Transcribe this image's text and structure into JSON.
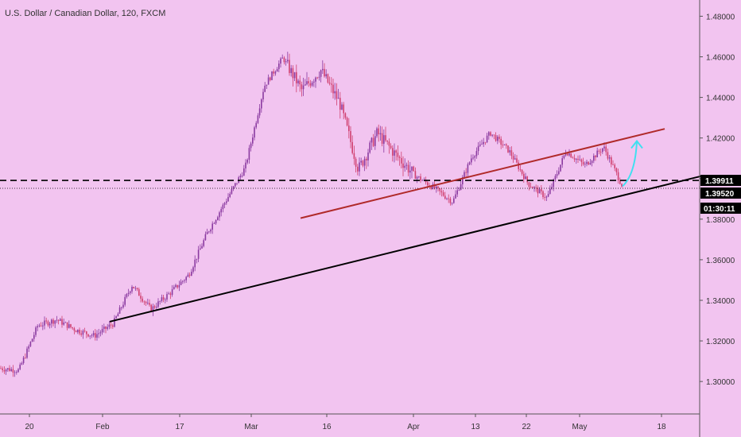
{
  "chart_data": {
    "type": "candlestick",
    "title": "U.S. Dollar / Canadian Dollar, 120, FXCM",
    "ylim": [
      1.284,
      1.488
    ],
    "y_ticks": [
      "1.30000",
      "1.32000",
      "1.34000",
      "1.36000",
      "1.38000",
      "1.40000",
      "1.42000",
      "1.44000",
      "1.46000",
      "1.48000"
    ],
    "x_ticks": [
      "20",
      "Feb",
      "17",
      "Mar",
      "16",
      "Apr",
      "13",
      "22",
      "May",
      "18"
    ],
    "price_path": [
      {
        "x": "start",
        "y": 1.3065
      },
      {
        "x": "20",
        "y": 1.3055
      },
      {
        "x": "Feb",
        "y": 1.3275
      },
      {
        "x": "Feb",
        "y": 1.3305
      },
      {
        "x": "17",
        "y": 1.3255
      },
      {
        "x": "17",
        "y": 1.3225
      },
      {
        "x": "17",
        "y": 1.3285
      },
      {
        "x": "Mar",
        "y": 1.3475
      },
      {
        "x": "Mar",
        "y": 1.3355
      },
      {
        "x": "Mar",
        "y": 1.3435
      },
      {
        "x": "Mar",
        "y": 1.3525
      },
      {
        "x": "Mar",
        "y": 1.3735
      },
      {
        "x": "16",
        "y": 1.3895
      },
      {
        "x": "16",
        "y": 1.4055
      },
      {
        "x": "16",
        "y": 1.4455
      },
      {
        "x": "16",
        "y": 1.4595
      },
      {
        "x": "16",
        "y": 1.4435
      },
      {
        "x": "16",
        "y": 1.4535
      },
      {
        "x": "16",
        "y": 1.4375
      },
      {
        "x": "Apr",
        "y": 1.4045
      },
      {
        "x": "Apr",
        "y": 1.4225
      },
      {
        "x": "Apr",
        "y": 1.4115
      },
      {
        "x": "Apr",
        "y": 1.4015
      },
      {
        "x": "13",
        "y": 1.3955
      },
      {
        "x": "13",
        "y": 1.3885
      },
      {
        "x": "13",
        "y": 1.4105
      },
      {
        "x": "22",
        "y": 1.4225
      },
      {
        "x": "22",
        "y": 1.4135
      },
      {
        "x": "22",
        "y": 1.3975
      },
      {
        "x": "May",
        "y": 1.3905
      },
      {
        "x": "May",
        "y": 1.4135
      },
      {
        "x": "May",
        "y": 1.4065
      },
      {
        "x": "May",
        "y": 1.4155
      },
      {
        "x": "May",
        "y": 1.3962
      }
    ],
    "horizontal_lines": [
      {
        "value": 1.39911,
        "style": "dashed",
        "label": "1.39911"
      },
      {
        "value": 1.3952,
        "style": "dotted",
        "label": "1.39520"
      }
    ],
    "trendlines": [
      {
        "color": "#000000",
        "from": {
          "x": "Feb",
          "y": 1.3295
        },
        "to": {
          "x": "18+",
          "y": 1.4015
        }
      },
      {
        "color": "#b02a2a",
        "from": {
          "x": "Mar",
          "y": 1.3805
        },
        "to": {
          "x": "18",
          "y": 1.4245
        }
      }
    ],
    "projection_arrow": {
      "color": "#40e0f0"
    },
    "countdown": "01:30:11",
    "colors": {
      "background": "#f2c4f0",
      "candle": "#8a3aa0",
      "candle_alt": "#d04070",
      "badge": "#000000"
    },
    "grid": false
  }
}
